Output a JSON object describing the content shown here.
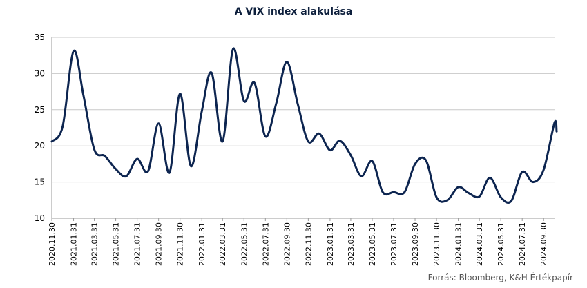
{
  "chart_data": {
    "type": "line",
    "title": "A VIX index alakulása",
    "source": "Forrás: Bloomberg, K&H Értékpapír",
    "ylim": [
      10,
      35
    ],
    "yticks": [
      10,
      15,
      20,
      25,
      30,
      35
    ],
    "grid": "horizontal",
    "xlim": [
      "2020.11.30",
      "2024.10.31"
    ],
    "xtick_labels": [
      "2020.11.30",
      "2021.01.31",
      "2021.03.31",
      "2021.05.31",
      "2021.07.31",
      "2021.09.30",
      "2021.11.30",
      "2022.01.31",
      "2022.03.31",
      "2022.05.31",
      "2022.07.31",
      "2022.09.30",
      "2022.11.30",
      "2023.01.31",
      "2023.03.31",
      "2023.05.31",
      "2023.07.31",
      "2023.09.30",
      "2023.11.30",
      "2024.01.31",
      "2024.03.31",
      "2024.05.31",
      "2024.07.31",
      "2024.09.30"
    ],
    "series": [
      {
        "color": "#0d2550",
        "points": [
          [
            "2020.11.30",
            20.6
          ],
          [
            "2020.12.31",
            22.7
          ],
          [
            "2021.01.31",
            33.1
          ],
          [
            "2021.02.28",
            27.0
          ],
          [
            "2021.03.31",
            19.5
          ],
          [
            "2021.04.30",
            18.6
          ],
          [
            "2021.05.31",
            16.8
          ],
          [
            "2021.06.30",
            15.8
          ],
          [
            "2021.07.31",
            18.2
          ],
          [
            "2021.08.31",
            16.5
          ],
          [
            "2021.09.30",
            23.1
          ],
          [
            "2021.10.31",
            16.3
          ],
          [
            "2021.11.30",
            27.2
          ],
          [
            "2021.12.31",
            17.2
          ],
          [
            "2022.01.31",
            24.8
          ],
          [
            "2022.02.28",
            30.1
          ],
          [
            "2022.03.31",
            20.6
          ],
          [
            "2022.04.30",
            33.4
          ],
          [
            "2022.05.31",
            26.2
          ],
          [
            "2022.06.30",
            28.7
          ],
          [
            "2022.07.31",
            21.3
          ],
          [
            "2022.08.31",
            25.9
          ],
          [
            "2022.09.30",
            31.6
          ],
          [
            "2022.10.31",
            25.8
          ],
          [
            "2022.11.30",
            20.6
          ],
          [
            "2022.12.31",
            21.7
          ],
          [
            "2023.01.31",
            19.4
          ],
          [
            "2023.02.28",
            20.7
          ],
          [
            "2023.03.31",
            18.7
          ],
          [
            "2023.04.30",
            15.8
          ],
          [
            "2023.05.31",
            17.9
          ],
          [
            "2023.06.30",
            13.6
          ],
          [
            "2023.07.31",
            13.6
          ],
          [
            "2023.08.31",
            13.6
          ],
          [
            "2023.09.30",
            17.5
          ],
          [
            "2023.10.31",
            18.0
          ],
          [
            "2023.11.30",
            12.9
          ],
          [
            "2023.12.31",
            12.5
          ],
          [
            "2024.01.31",
            14.3
          ],
          [
            "2024.02.29",
            13.5
          ],
          [
            "2024.03.31",
            13.0
          ],
          [
            "2024.04.30",
            15.6
          ],
          [
            "2024.05.31",
            12.9
          ],
          [
            "2024.06.30",
            12.4
          ],
          [
            "2024.07.31",
            16.4
          ],
          [
            "2024.08.31",
            15.0
          ],
          [
            "2024.09.30",
            16.7
          ],
          [
            "2024.10.31",
            23.2
          ],
          [
            "2024.11.06",
            22.0
          ]
        ]
      }
    ]
  }
}
